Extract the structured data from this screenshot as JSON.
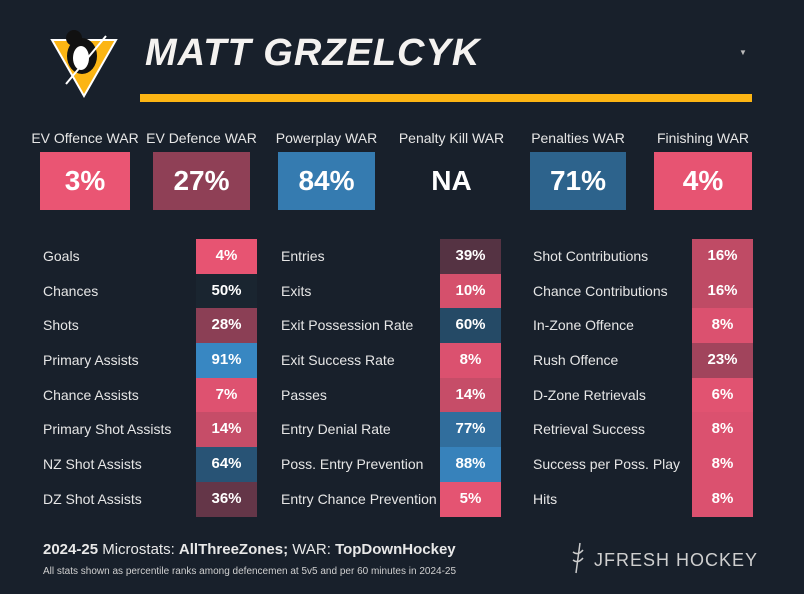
{
  "player": {
    "name": "MATT GRZELCYK",
    "team_logo": "penguins-logo"
  },
  "war": [
    {
      "label": "EV Offence WAR",
      "value": "3%",
      "pct": 3
    },
    {
      "label": "EV Defence WAR",
      "value": "27%",
      "pct": 27
    },
    {
      "label": "Powerplay WAR",
      "value": "84%",
      "pct": 84
    },
    {
      "label": "Penalty Kill WAR",
      "value": "NA",
      "pct": null
    },
    {
      "label": "Penalties WAR",
      "value": "71%",
      "pct": 71
    },
    {
      "label": "Finishing WAR",
      "value": "4%",
      "pct": 4
    }
  ],
  "columns": [
    [
      {
        "label": "Goals",
        "value": "4%",
        "pct": 4
      },
      {
        "label": "Chances",
        "value": "50%",
        "pct": 50
      },
      {
        "label": "Shots",
        "value": "28%",
        "pct": 28
      },
      {
        "label": "Primary Assists",
        "value": "91%",
        "pct": 91
      },
      {
        "label": "Chance Assists",
        "value": "7%",
        "pct": 7
      },
      {
        "label": "Primary Shot Assists",
        "value": "14%",
        "pct": 14
      },
      {
        "label": "NZ Shot Assists",
        "value": "64%",
        "pct": 64
      },
      {
        "label": "DZ Shot Assists",
        "value": "36%",
        "pct": 36
      }
    ],
    [
      {
        "label": "Entries",
        "value": "39%",
        "pct": 39
      },
      {
        "label": "Exits",
        "value": "10%",
        "pct": 10
      },
      {
        "label": "Exit Possession Rate",
        "value": "60%",
        "pct": 60
      },
      {
        "label": "Exit Success Rate",
        "value": "8%",
        "pct": 8
      },
      {
        "label": "Passes",
        "value": "14%",
        "pct": 14
      },
      {
        "label": "Entry Denial Rate",
        "value": "77%",
        "pct": 77
      },
      {
        "label": "Poss. Entry Prevention",
        "value": "88%",
        "pct": 88
      },
      {
        "label": "Entry Chance Prevention",
        "value": "5%",
        "pct": 5
      }
    ],
    [
      {
        "label": "Shot Contributions",
        "value": "16%",
        "pct": 16
      },
      {
        "label": "Chance Contributions",
        "value": "16%",
        "pct": 16
      },
      {
        "label": "In-Zone Offence",
        "value": "8%",
        "pct": 8
      },
      {
        "label": "Rush Offence",
        "value": "23%",
        "pct": 23
      },
      {
        "label": "D-Zone Retrievals",
        "value": "6%",
        "pct": 6
      },
      {
        "label": "Retrieval Success",
        "value": "8%",
        "pct": 8
      },
      {
        "label": "Success per Poss. Play",
        "value": "8%",
        "pct": 8
      },
      {
        "label": "Hits",
        "value": "8%",
        "pct": 8
      }
    ]
  ],
  "footer": {
    "season": "2024-25",
    "micro_label": " Microstats: ",
    "micro_source": "AllThreeZones;",
    "war_label": " WAR: ",
    "war_source": "TopDownHockey",
    "note": "All stats shown as percentile ranks among defencemen at 5v5 and per 60 minutes in 2024-25",
    "brand": "JFRESH HOCKEY"
  },
  "colors": {
    "low": "#ef5675",
    "mid": "#1a2530",
    "high": "#3d96d8",
    "accent": "#fcb514",
    "background": "#18202b"
  }
}
